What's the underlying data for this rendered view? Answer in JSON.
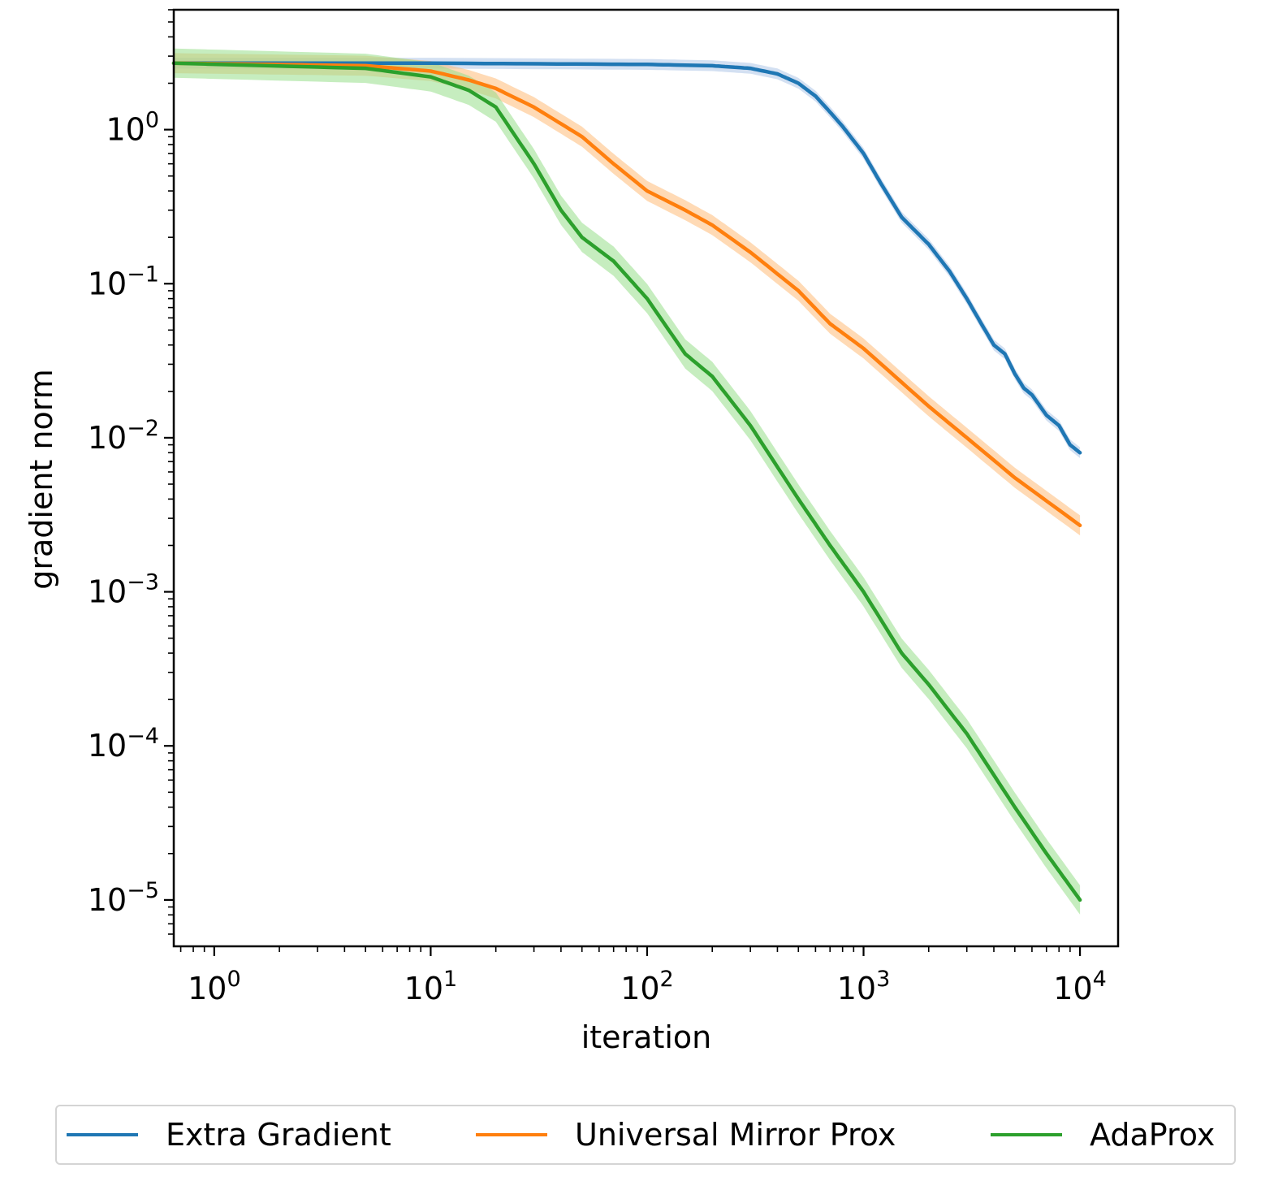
{
  "chart_data": {
    "type": "line",
    "xscale": "log",
    "yscale": "log",
    "xlabel": "iteration",
    "ylabel": "gradient norm",
    "xlim": [
      0.65,
      15000
    ],
    "ylim": [
      5e-06,
      6
    ],
    "xtick_labels": [
      {
        "base": "10",
        "exp": "0",
        "value": 1
      },
      {
        "base": "10",
        "exp": "1",
        "value": 10
      },
      {
        "base": "10",
        "exp": "2",
        "value": 100
      },
      {
        "base": "10",
        "exp": "3",
        "value": 1000
      },
      {
        "base": "10",
        "exp": "4",
        "value": 10000
      }
    ],
    "ytick_labels": [
      {
        "base": "10",
        "exp": "0",
        "value": 1
      },
      {
        "base": "10",
        "exp": "−1",
        "value": 0.1
      },
      {
        "base": "10",
        "exp": "−2",
        "value": 0.01
      },
      {
        "base": "10",
        "exp": "−3",
        "value": 0.001
      },
      {
        "base": "10",
        "exp": "−4",
        "value": 0.0001
      },
      {
        "base": "10",
        "exp": "−5",
        "value": 1e-05
      }
    ],
    "grid": false,
    "legend_position": "bottom-center",
    "series": [
      {
        "name": "Extra Gradient",
        "color": "#1f77b4",
        "band_color": "#aec7e8",
        "x": [
          1,
          10,
          100,
          200,
          300,
          400,
          500,
          600,
          700,
          800,
          1000,
          1200,
          1500,
          2000,
          2500,
          3000,
          3500,
          4000,
          4500,
          5000,
          5500,
          6000,
          7000,
          8000,
          9000,
          10000
        ],
        "y": [
          2.7,
          2.7,
          2.65,
          2.6,
          2.5,
          2.3,
          2.0,
          1.65,
          1.3,
          1.05,
          0.7,
          0.45,
          0.27,
          0.18,
          0.12,
          0.08,
          0.055,
          0.04,
          0.035,
          0.026,
          0.021,
          0.019,
          0.014,
          0.012,
          0.009,
          0.008
        ]
      },
      {
        "name": "Universal Mirror Prox",
        "color": "#ff7f0e",
        "band_color": "#ffbb78",
        "x": [
          1,
          5,
          10,
          15,
          20,
          30,
          50,
          70,
          100,
          150,
          200,
          300,
          500,
          700,
          1000,
          2000,
          3000,
          5000,
          10000
        ],
        "y": [
          2.7,
          2.6,
          2.4,
          2.1,
          1.85,
          1.4,
          0.9,
          0.6,
          0.4,
          0.3,
          0.24,
          0.16,
          0.09,
          0.055,
          0.038,
          0.016,
          0.01,
          0.0055,
          0.0027
        ]
      },
      {
        "name": "AdaProx",
        "color": "#2ca02c",
        "band_color": "#98df8a",
        "x": [
          1,
          5,
          10,
          15,
          20,
          30,
          40,
          50,
          70,
          100,
          150,
          200,
          300,
          500,
          700,
          1000,
          1500,
          2000,
          3000,
          5000,
          7000,
          10000
        ],
        "y": [
          2.7,
          2.5,
          2.2,
          1.8,
          1.4,
          0.6,
          0.3,
          0.2,
          0.14,
          0.08,
          0.035,
          0.025,
          0.012,
          0.004,
          0.002,
          0.001,
          0.0004,
          0.00025,
          0.00012,
          4e-05,
          2e-05,
          1e-05
        ]
      }
    ]
  }
}
